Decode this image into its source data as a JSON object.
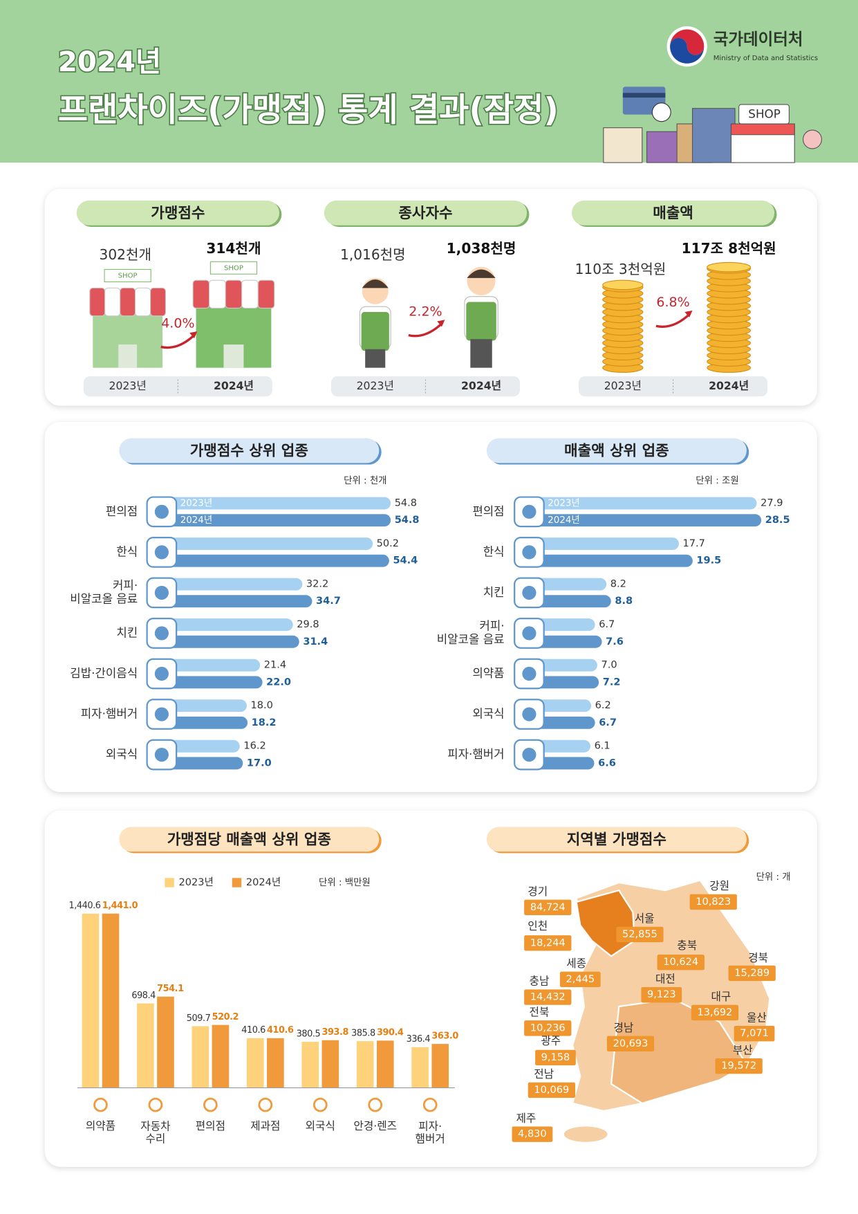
{
  "header": {
    "title_line1": "2024년",
    "title_line2": "프랜차이즈(가맹점) 통계 결과(잠정)",
    "org": "국가데이터처",
    "org_en": "Ministry of Data and Statistics",
    "shop_sign": "SHOP"
  },
  "summary": {
    "years": [
      "2023년",
      "2024년"
    ],
    "items": [
      {
        "title": "가맹점수",
        "prev": "302천개",
        "curr": "314천개",
        "change": "4.0%"
      },
      {
        "title": "종사자수",
        "prev": "1,016천명",
        "curr": "1,038천명",
        "change": "2.2%"
      },
      {
        "title": "매출액",
        "prev": "110조 3천억원",
        "curr": "117조 8천억원",
        "change": "6.8%"
      }
    ]
  },
  "chart_data": [
    {
      "type": "barh",
      "title": "가맹점수 상위 업종",
      "unit": "단위 : 천개",
      "categories": [
        "편의점",
        "한식",
        "커피·\n비알코올 음료",
        "치킨",
        "김밥·간이음식",
        "피자·햄버거",
        "외국식"
      ],
      "series": [
        {
          "name": "2023년",
          "color": "#a6d1f1",
          "values": [
            54.8,
            50.2,
            32.2,
            29.8,
            21.4,
            18.0,
            16.2
          ],
          "value_labels": [
            "54.8",
            "50.2",
            "32.2",
            "29.8",
            "21.4",
            "18.0",
            "16.2"
          ]
        },
        {
          "name": "2024년",
          "color": "#5f96cc",
          "values": [
            54.8,
            54.4,
            34.7,
            31.4,
            22.0,
            18.2,
            17.0
          ],
          "value_labels": [
            "54.8",
            "54.4",
            "34.7",
            "31.4",
            "22.0",
            "18.2",
            "17.0"
          ]
        }
      ]
    },
    {
      "type": "barh",
      "title": "매출액 상위 업종",
      "unit": "단위 : 조원",
      "categories": [
        "편의점",
        "한식",
        "치킨",
        "커피·\n비알코올 음료",
        "의약품",
        "외국식",
        "피자·햄버거"
      ],
      "series": [
        {
          "name": "2023년",
          "color": "#a6d1f1",
          "values": [
            27.9,
            17.7,
            8.2,
            6.7,
            7.0,
            6.2,
            6.1
          ],
          "value_labels": [
            "27.9",
            "17.7",
            "8.2",
            "6.7",
            "7.0",
            "6.2",
            "6.1"
          ]
        },
        {
          "name": "2024년",
          "color": "#5f96cc",
          "values": [
            28.5,
            19.5,
            8.8,
            7.6,
            7.2,
            6.7,
            6.6
          ],
          "value_labels": [
            "28.5",
            "19.5",
            "8.8",
            "7.6",
            "7.2",
            "6.7",
            "6.6"
          ]
        }
      ]
    },
    {
      "type": "bar",
      "title": "가맹점당 매출액 상위 업종",
      "unit": "단위 : 백만원",
      "categories": [
        "의약품",
        "자동차\n수리",
        "편의점",
        "제과점",
        "외국식",
        "안경·렌즈",
        "피자·\n햄버거"
      ],
      "series": [
        {
          "name": "2023년",
          "color": "#fdd27b",
          "values": [
            1440.6,
            698.4,
            509.7,
            410.6,
            380.5,
            385.8,
            336.4
          ],
          "value_labels": [
            "1,440.6",
            "698.4",
            "509.7",
            "410.6",
            "380.5",
            "385.8",
            "336.4"
          ]
        },
        {
          "name": "2024년",
          "color": "#f09a3c",
          "values": [
            1441.0,
            754.1,
            520.2,
            410.6,
            393.8,
            390.4,
            363.0
          ],
          "value_labels": [
            "1,441.0",
            "754.1",
            "520.2",
            "410.6",
            "393.8",
            "390.4",
            "363.0"
          ]
        }
      ]
    },
    {
      "type": "map",
      "title": "지역별 가맹점수",
      "unit": "단위 : 개",
      "color": "#f0962e",
      "categories": [
        "경기",
        "서울",
        "인천",
        "강원",
        "충북",
        "경북",
        "세종",
        "대전",
        "충남",
        "대구",
        "전북",
        "울산",
        "광주",
        "경남",
        "부산",
        "전남",
        "제주"
      ],
      "values": [
        84724,
        52855,
        18244,
        10823,
        10624,
        15289,
        2445,
        9123,
        14432,
        13692,
        10236,
        7071,
        9158,
        20693,
        19572,
        10069,
        4830
      ],
      "value_labels": [
        "84,724",
        "52,855",
        "18,244",
        "10,823",
        "10,624",
        "15,289",
        "2,445",
        "9,123",
        "14,432",
        "13,692",
        "10,236",
        "7,071",
        "9,158",
        "20,693",
        "19,572",
        "10,069",
        "4,830"
      ]
    }
  ]
}
